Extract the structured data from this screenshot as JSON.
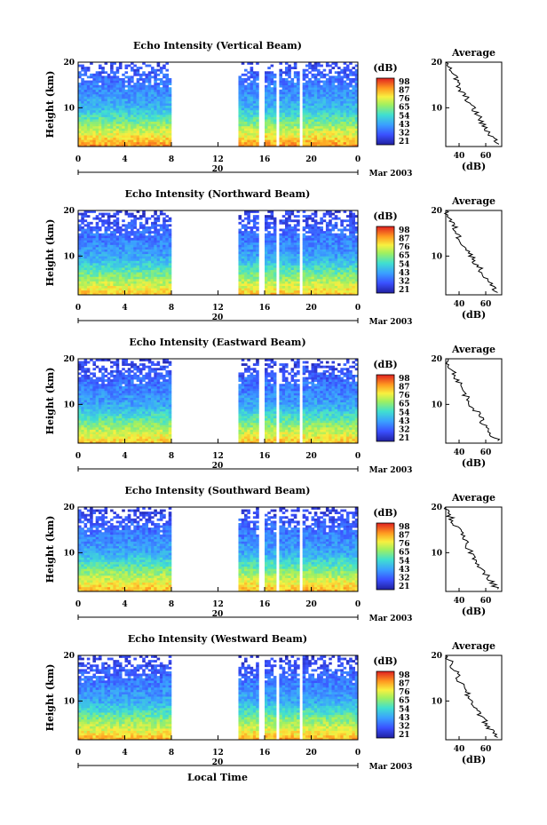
{
  "figure": {
    "xlabel": "Local Time",
    "date_label": "Mar 2003",
    "day_label": "20",
    "ylabel": "Height (km)",
    "colorbar_unit": "(dB)",
    "avg_title": "Average",
    "avg_xlabel": "(dB)"
  },
  "chart_data": [
    {
      "type": "heatmap",
      "title": "Echo Intensity (Vertical Beam)",
      "xlabel": "Local Time",
      "ylabel": "Height (km)",
      "xlim": [
        0,
        24
      ],
      "ylim": [
        1.5,
        20
      ],
      "x_ticks": [
        "0",
        "4",
        "8",
        "12",
        "16",
        "20",
        "0"
      ],
      "y_ticks": [
        "20",
        "10"
      ],
      "colorbar": {
        "unit": "(dB)",
        "ticks": [
          "98",
          "87",
          "76",
          "65",
          "54",
          "43",
          "32",
          "21"
        ],
        "range": [
          21,
          98
        ]
      },
      "data_gaps_hours": [
        [
          8,
          13.8
        ],
        [
          15.5,
          15.9
        ],
        [
          16.9,
          17.2
        ],
        [
          19.0,
          19.3
        ]
      ],
      "color_intensity_low_to_high_with_height": {
        "20km": 30,
        "10km": 48,
        "2km": 85
      },
      "average_profile": {
        "title": "Average",
        "xlabel": "(dB)",
        "x_ticks": [
          "40",
          "60"
        ],
        "y_ticks": [
          "20",
          "10"
        ],
        "height_km": [
          20,
          18,
          16,
          14,
          12,
          10,
          8,
          6,
          4,
          2
        ],
        "db": [
          32,
          35,
          38,
          40,
          46,
          50,
          55,
          58,
          64,
          70
        ]
      }
    },
    {
      "type": "heatmap",
      "title": "Echo Intensity (Northward Beam)",
      "xlabel": "Local Time",
      "ylabel": "Height (km)",
      "xlim": [
        0,
        24
      ],
      "ylim": [
        1.5,
        20
      ],
      "x_ticks": [
        "0",
        "4",
        "8",
        "12",
        "16",
        "20",
        "0"
      ],
      "y_ticks": [
        "20",
        "10"
      ],
      "colorbar": {
        "unit": "(dB)",
        "ticks": [
          "98",
          "87",
          "76",
          "65",
          "54",
          "43",
          "32",
          "21"
        ],
        "range": [
          21,
          98
        ]
      },
      "data_gaps_hours": [
        [
          8,
          13.8
        ],
        [
          15.5,
          15.9
        ],
        [
          16.9,
          17.2
        ],
        [
          19.0,
          19.3
        ]
      ],
      "color_intensity_low_to_high_with_height": {
        "20km": 28,
        "10km": 45,
        "2km": 80
      },
      "average_profile": {
        "title": "Average",
        "xlabel": "(dB)",
        "x_ticks": [
          "40",
          "60"
        ],
        "y_ticks": [
          "20",
          "10"
        ],
        "height_km": [
          20,
          18,
          16,
          14,
          12,
          10,
          8,
          6,
          4,
          2
        ],
        "db": [
          30,
          33,
          37,
          40,
          45,
          49,
          54,
          58,
          63,
          69
        ]
      }
    },
    {
      "type": "heatmap",
      "title": "Echo Intensity (Eastward Beam)",
      "xlabel": "Local Time",
      "ylabel": "Height (km)",
      "xlim": [
        0,
        24
      ],
      "ylim": [
        1.5,
        20
      ],
      "x_ticks": [
        "0",
        "4",
        "8",
        "12",
        "16",
        "20",
        "0"
      ],
      "y_ticks": [
        "20",
        "10"
      ],
      "colorbar": {
        "unit": "(dB)",
        "ticks": [
          "98",
          "87",
          "76",
          "65",
          "54",
          "43",
          "32",
          "21"
        ],
        "range": [
          21,
          98
        ]
      },
      "data_gaps_hours": [
        [
          8,
          13.8
        ],
        [
          15.5,
          15.9
        ],
        [
          16.9,
          17.2
        ],
        [
          19.0,
          19.3
        ]
      ],
      "color_intensity_low_to_high_with_height": {
        "20km": 28,
        "10km": 45,
        "2km": 80
      },
      "average_profile": {
        "title": "Average",
        "xlabel": "(dB)",
        "x_ticks": [
          "40",
          "60"
        ],
        "y_ticks": [
          "20",
          "10"
        ],
        "height_km": [
          20,
          18,
          16,
          14,
          12,
          10,
          8,
          6,
          4,
          2
        ],
        "db": [
          31,
          34,
          38,
          41,
          45,
          49,
          54,
          58,
          63,
          69
        ]
      }
    },
    {
      "type": "heatmap",
      "title": "Echo Intensity (Southward Beam)",
      "xlabel": "Local Time",
      "ylabel": "Height (km)",
      "xlim": [
        0,
        24
      ],
      "ylim": [
        1.5,
        20
      ],
      "x_ticks": [
        "0",
        "4",
        "8",
        "12",
        "16",
        "20",
        "0"
      ],
      "y_ticks": [
        "20",
        "10"
      ],
      "colorbar": {
        "unit": "(dB)",
        "ticks": [
          "98",
          "87",
          "76",
          "65",
          "54",
          "43",
          "32",
          "21"
        ],
        "range": [
          21,
          98
        ]
      },
      "data_gaps_hours": [
        [
          8,
          13.8
        ],
        [
          15.5,
          15.9
        ],
        [
          16.9,
          17.2
        ],
        [
          19.0,
          19.3
        ]
      ],
      "color_intensity_low_to_high_with_height": {
        "20km": 28,
        "10km": 46,
        "2km": 82
      },
      "average_profile": {
        "title": "Average",
        "xlabel": "(dB)",
        "x_ticks": [
          "40",
          "60"
        ],
        "y_ticks": [
          "20",
          "10"
        ],
        "height_km": [
          20,
          18,
          16,
          14,
          12,
          10,
          8,
          6,
          4,
          2
        ],
        "db": [
          30,
          33,
          37,
          42,
          45,
          49,
          54,
          58,
          63,
          69
        ]
      }
    },
    {
      "type": "heatmap",
      "title": "Echo Intensity (Westward Beam)",
      "xlabel": "Local Time",
      "ylabel": "Height (km)",
      "xlim": [
        0,
        24
      ],
      "ylim": [
        1.5,
        20
      ],
      "x_ticks": [
        "0",
        "4",
        "8",
        "12",
        "16",
        "20",
        "0"
      ],
      "y_ticks": [
        "20",
        "10"
      ],
      "colorbar": {
        "unit": "(dB)",
        "ticks": [
          "98",
          "87",
          "76",
          "65",
          "54",
          "43",
          "32",
          "21"
        ],
        "range": [
          21,
          98
        ]
      },
      "data_gaps_hours": [
        [
          8,
          13.8
        ],
        [
          15.5,
          15.9
        ],
        [
          16.9,
          17.2
        ],
        [
          19.0,
          19.3
        ]
      ],
      "color_intensity_low_to_high_with_height": {
        "20km": 28,
        "10km": 46,
        "2km": 82
      },
      "average_profile": {
        "title": "Average",
        "xlabel": "(dB)",
        "x_ticks": [
          "40",
          "60"
        ],
        "y_ticks": [
          "20",
          "10"
        ],
        "height_km": [
          20,
          18,
          16,
          14,
          12,
          10,
          8,
          6,
          4,
          2
        ],
        "db": [
          31,
          34,
          38,
          41,
          45,
          49,
          54,
          58,
          63,
          69
        ]
      }
    }
  ]
}
